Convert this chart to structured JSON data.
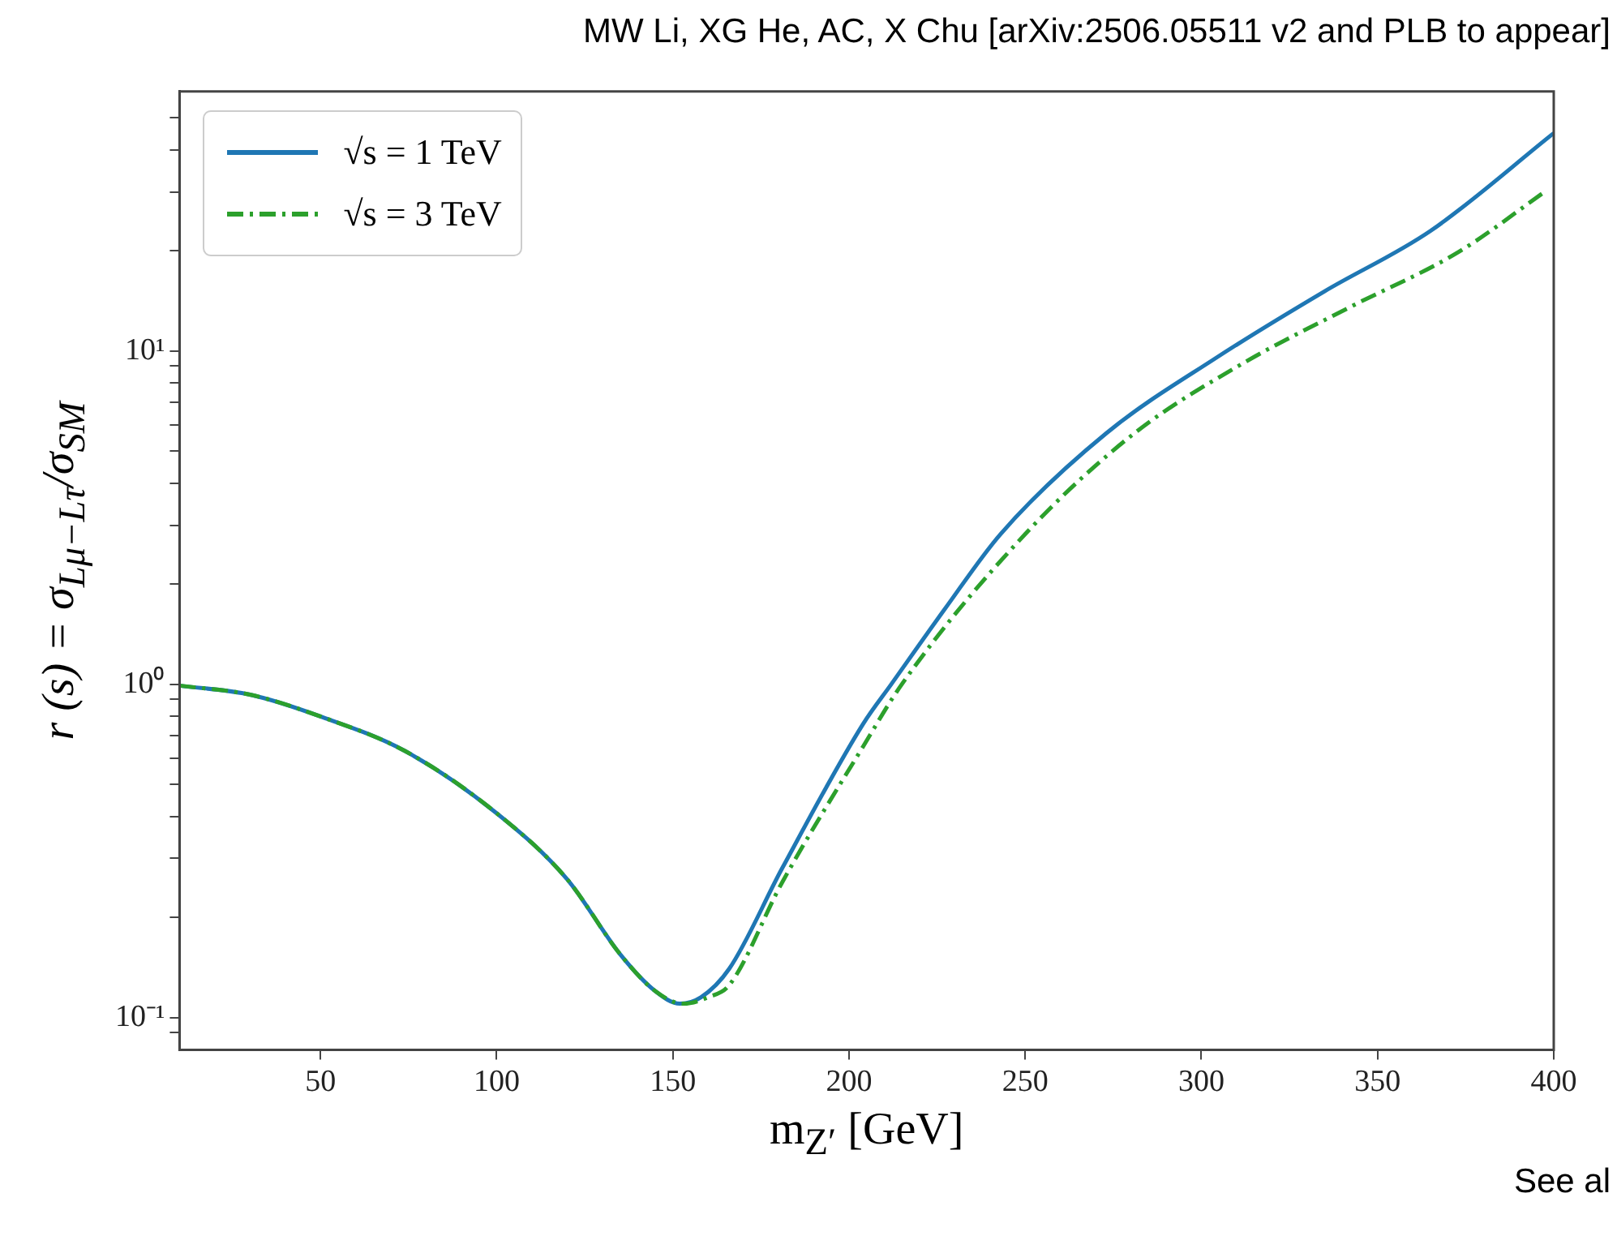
{
  "chart_data": {
    "type": "line",
    "title": "MW Li, XG He, AC, X Chu [arXiv:2506.05511 v2 and PLB to appear]",
    "xlabel": "m$_{Z′}$ [GeV]",
    "ylabel": "r (s) = σ$_{Lμ−Lτ}$/σ$_{SM}$",
    "annotations": [
      "See al"
    ],
    "series": [
      {
        "name": "√s = 1 TeV",
        "color": "#1f77b4",
        "line_style": "solid",
        "x": [
          10,
          30,
          50,
          74,
          100,
          120,
          135,
          145,
          152,
          158,
          166,
          181,
          204,
          212,
          227,
          243,
          273,
          304,
          335,
          365,
          400
        ],
        "values": [
          0.99,
          0.93,
          0.8,
          0.63,
          0.41,
          0.26,
          0.155,
          0.12,
          0.11,
          0.115,
          0.14,
          0.28,
          0.76,
          1.0,
          1.67,
          2.82,
          5.66,
          9.5,
          15.1,
          22.9,
          45
        ]
      },
      {
        "name": "√s = 3 TeV",
        "color": "#2ca02c",
        "line_style": "dashdot",
        "x": [
          10,
          30,
          50,
          74,
          100,
          120,
          135,
          145,
          153,
          160,
          166,
          181,
          204,
          215,
          250,
          281,
          312,
          342,
          373,
          398
        ],
        "values": [
          0.99,
          0.93,
          0.8,
          0.63,
          0.41,
          0.26,
          0.155,
          0.12,
          0.11,
          0.115,
          0.125,
          0.254,
          0.65,
          1.0,
          2.82,
          5.66,
          9.2,
          13.5,
          19.8,
          30.3
        ]
      }
    ],
    "xlim": [
      10,
      400
    ],
    "xticks": [
      50,
      100,
      150,
      200,
      250,
      300,
      350,
      400
    ],
    "ylim": [
      0.08,
      60
    ],
    "log": "y",
    "yticks": [
      {
        "value": 0.09,
        "label": null
      },
      {
        "value": 0.1,
        "label": "10⁻¹"
      },
      {
        "value": 0.2,
        "label": null
      },
      {
        "value": 0.3,
        "label": null
      },
      {
        "value": 0.4,
        "label": null
      },
      {
        "value": 0.5,
        "label": null
      },
      {
        "value": 0.6,
        "label": null
      },
      {
        "value": 0.7,
        "label": null
      },
      {
        "value": 0.8,
        "label": null
      },
      {
        "value": 0.9,
        "label": null
      },
      {
        "value": 1,
        "label": "10⁰"
      },
      {
        "value": 2,
        "label": null
      },
      {
        "value": 3,
        "label": null
      },
      {
        "value": 4,
        "label": null
      },
      {
        "value": 5,
        "label": null
      },
      {
        "value": 6,
        "label": null
      },
      {
        "value": 7,
        "label": null
      },
      {
        "value": 8,
        "label": null
      },
      {
        "value": 9,
        "label": null
      },
      {
        "value": 10,
        "label": "10¹"
      },
      {
        "value": 20,
        "label": null
      },
      {
        "value": 30,
        "label": null
      },
      {
        "value": 40,
        "label": null
      },
      {
        "value": 50,
        "label": null
      }
    ],
    "grid": false,
    "legend": "top left",
    "marker": "none"
  }
}
